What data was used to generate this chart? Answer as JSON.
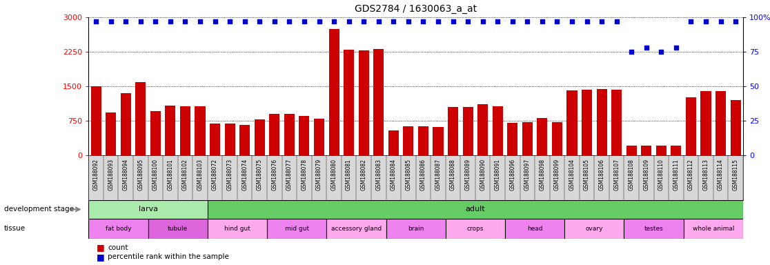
{
  "title": "GDS2784 / 1630063_a_at",
  "samples": [
    "GSM188092",
    "GSM188093",
    "GSM188094",
    "GSM188095",
    "GSM188100",
    "GSM188101",
    "GSM188102",
    "GSM188103",
    "GSM188072",
    "GSM188073",
    "GSM188074",
    "GSM188075",
    "GSM188076",
    "GSM188077",
    "GSM188078",
    "GSM188079",
    "GSM188080",
    "GSM188081",
    "GSM188082",
    "GSM188083",
    "GSM188084",
    "GSM188085",
    "GSM188086",
    "GSM188087",
    "GSM188088",
    "GSM188089",
    "GSM188090",
    "GSM188091",
    "GSM188096",
    "GSM188097",
    "GSM188098",
    "GSM188099",
    "GSM188104",
    "GSM188105",
    "GSM188106",
    "GSM188107",
    "GSM188108",
    "GSM188109",
    "GSM188110",
    "GSM188111",
    "GSM188112",
    "GSM188113",
    "GSM188114",
    "GSM188115"
  ],
  "counts": [
    1490,
    920,
    1350,
    1580,
    950,
    1080,
    1060,
    1060,
    680,
    680,
    650,
    780,
    900,
    900,
    850,
    790,
    2750,
    2300,
    2280,
    2310,
    530,
    620,
    620,
    610,
    1050,
    1050,
    1110,
    1060,
    700,
    710,
    800,
    720,
    1400,
    1420,
    1430,
    1420,
    200,
    200,
    200,
    200,
    1250,
    1390,
    1390,
    1190
  ],
  "percentile": [
    97,
    97,
    97,
    97,
    97,
    97,
    97,
    97,
    97,
    97,
    97,
    97,
    97,
    97,
    97,
    97,
    97,
    97,
    97,
    97,
    97,
    97,
    97,
    97,
    97,
    97,
    97,
    97,
    97,
    97,
    97,
    97,
    97,
    97,
    97,
    97,
    75,
    78,
    75,
    78,
    97,
    97,
    97,
    97
  ],
  "dev_stage_groups": [
    {
      "label": "larva",
      "start": 0,
      "end": 7,
      "color": "#aaeaaa"
    },
    {
      "label": "adult",
      "start": 8,
      "end": 43,
      "color": "#66cc66"
    }
  ],
  "tissue_groups": [
    {
      "label": "fat body",
      "start": 0,
      "end": 3,
      "color": "#ee82ee"
    },
    {
      "label": "tubule",
      "start": 4,
      "end": 7,
      "color": "#dd66dd"
    },
    {
      "label": "hind gut",
      "start": 8,
      "end": 11,
      "color": "#ffaaee"
    },
    {
      "label": "mid gut",
      "start": 12,
      "end": 15,
      "color": "#ee82ee"
    },
    {
      "label": "accessory gland",
      "start": 16,
      "end": 19,
      "color": "#ffaaee"
    },
    {
      "label": "brain",
      "start": 20,
      "end": 23,
      "color": "#ee82ee"
    },
    {
      "label": "crops",
      "start": 24,
      "end": 27,
      "color": "#ffaaee"
    },
    {
      "label": "head",
      "start": 28,
      "end": 31,
      "color": "#ee82ee"
    },
    {
      "label": "ovary",
      "start": 32,
      "end": 35,
      "color": "#ffaaee"
    },
    {
      "label": "testes",
      "start": 36,
      "end": 39,
      "color": "#ee82ee"
    },
    {
      "label": "whole animal",
      "start": 40,
      "end": 43,
      "color": "#ffaaee"
    }
  ],
  "ylim_left": [
    0,
    3000
  ],
  "ylim_right": [
    0,
    100
  ],
  "yticks_left": [
    0,
    750,
    1500,
    2250,
    3000
  ],
  "yticks_right": [
    0,
    25,
    50,
    75,
    100
  ],
  "bar_color": "#cc0000",
  "dot_color": "#0000cc",
  "xtick_bg": "#d8d8d8"
}
